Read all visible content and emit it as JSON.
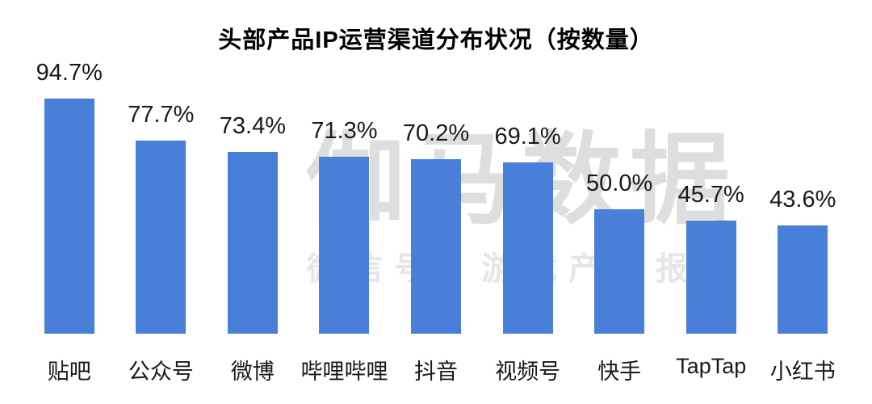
{
  "title": "头部产品IP运营渠道分布状况（按数量）",
  "watermark": {
    "brand": "伽马数据",
    "subtitle": "微信号：游戏产业报告"
  },
  "colors": {
    "bar": "#487FD8",
    "title_text": "#000000",
    "data_label_text": "#1a1a1a",
    "watermark_brand": "#dedede",
    "watermark_subtitle": "#e6e6e6",
    "background": "#ffffff"
  },
  "chart_data": {
    "type": "bar",
    "title": "头部产品IP运营渠道分布状况（按数量）",
    "categories": [
      "贴吧",
      "公众号",
      "微博",
      "哔哩哔哩",
      "抖音",
      "视频号",
      "快手",
      "TapTap",
      "小红书"
    ],
    "values": [
      94.7,
      77.7,
      73.4,
      71.3,
      70.2,
      69.1,
      50.0,
      45.7,
      43.6
    ],
    "value_labels": [
      "94.7%",
      "77.7%",
      "73.4%",
      "71.3%",
      "70.2%",
      "69.1%",
      "50.0%",
      "45.7%",
      "43.6%"
    ],
    "xlabel": "",
    "ylabel": "",
    "ylim": [
      0,
      100
    ],
    "grid": false,
    "legend": false,
    "axes_visible": false,
    "value_label_position": "above-bar"
  }
}
